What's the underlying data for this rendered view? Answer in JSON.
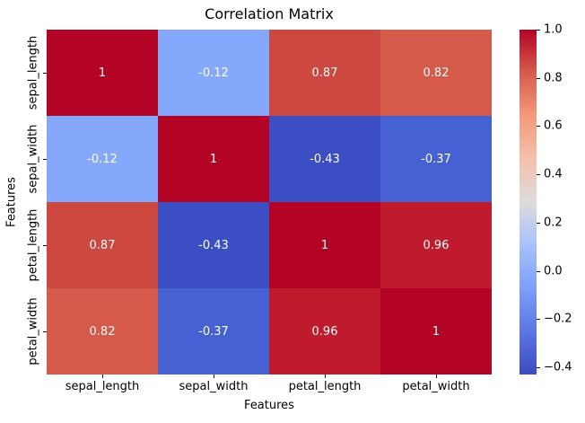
{
  "chart_data": {
    "type": "heatmap",
    "title": "Correlation Matrix",
    "xlabel": "Features",
    "ylabel": "Features",
    "categories": [
      "sepal_length",
      "sepal_width",
      "petal_length",
      "petal_width"
    ],
    "matrix": [
      [
        1,
        -0.12,
        0.87,
        0.82
      ],
      [
        -0.12,
        1,
        -0.43,
        -0.37
      ],
      [
        0.87,
        -0.43,
        1,
        0.96
      ],
      [
        0.82,
        -0.37,
        0.96,
        1
      ]
    ],
    "annotations": [
      [
        "1",
        "-0.12",
        "0.87",
        "0.82"
      ],
      [
        "-0.12",
        "1",
        "-0.43",
        "-0.37"
      ],
      [
        "0.87",
        "-0.43",
        "1",
        "0.96"
      ],
      [
        "0.82",
        "-0.37",
        "0.96",
        "1"
      ]
    ],
    "cell_colors": [
      [
        "#b40426",
        "#85a8fc",
        "#cc4840",
        "#d65a4a"
      ],
      [
        "#85a8fc",
        "#b40426",
        "#3c4ec3",
        "#4661d2"
      ],
      [
        "#cc4840",
        "#3c4ec3",
        "#b40426",
        "#bf1b2c"
      ],
      [
        "#d65a4a",
        "#4661d2",
        "#bf1b2c",
        "#b40426"
      ]
    ],
    "annotation_text_color": "#ffffff",
    "colormap": "coolwarm",
    "grid": false,
    "colorbar": {
      "position": "right",
      "vmin": -0.43,
      "vmax": 1.0,
      "ticks": [
        1.0,
        0.8,
        0.6,
        0.4,
        0.2,
        0.0,
        -0.2,
        -0.4
      ],
      "tick_labels": [
        "1.0",
        "0.8",
        "0.6",
        "0.4",
        "0.2",
        "0.0",
        "−0.2",
        "−0.4"
      ],
      "gradient_top_to_bottom": [
        "#b40426",
        "#d65a4a",
        "#f49a7b",
        "#f2c0ab",
        "#dddcdc",
        "#a8c1fd",
        "#7c9ff9",
        "#5b76e5",
        "#3b4cc0"
      ]
    }
  }
}
